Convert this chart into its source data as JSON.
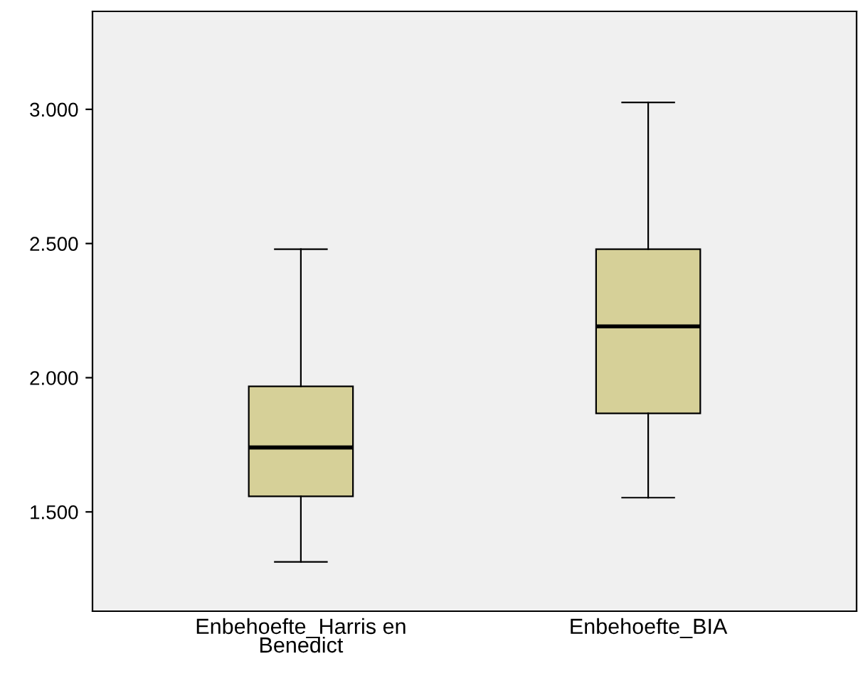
{
  "chart_data": {
    "type": "box",
    "categories": [
      "Enbehoefte_Harris en\nBenedict",
      "Enbehoefte_BIA"
    ],
    "boxes": [
      {
        "low": 1314,
        "q1": 1558,
        "median": 1740,
        "q3": 1968,
        "high": 2479
      },
      {
        "low": 1553,
        "q1": 1867,
        "median": 2191,
        "q3": 2479,
        "high": 3026
      }
    ],
    "color": "#d6d098",
    "ylim": [
      1130,
      3365
    ],
    "yticks": [
      {
        "value": 1500,
        "label": "1.500"
      },
      {
        "value": 2000,
        "label": "2.000"
      },
      {
        "value": 2500,
        "label": "2.500"
      },
      {
        "value": 3000,
        "label": "3.000"
      }
    ],
    "grid": false
  }
}
